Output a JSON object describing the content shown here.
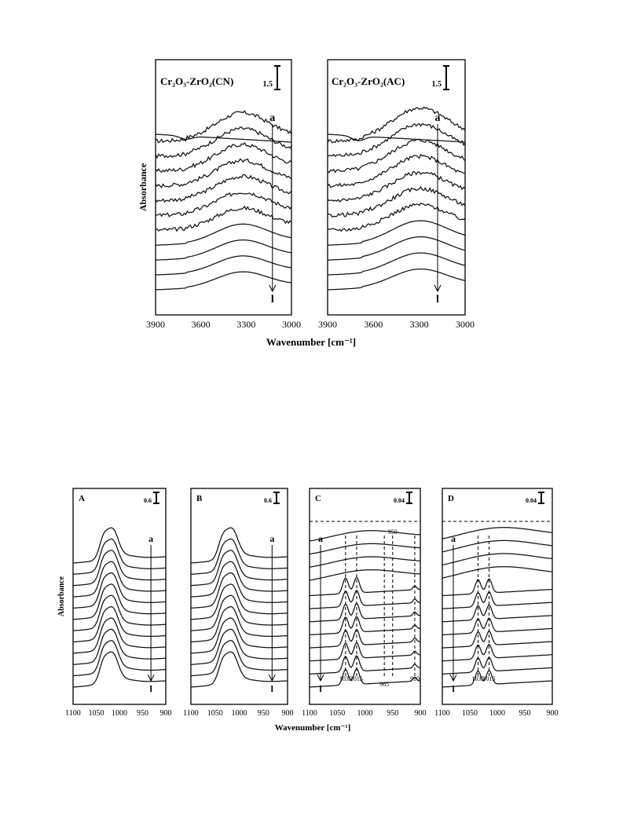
{
  "chart_data": [
    {
      "type": "line",
      "panel_title": "Cr₂O₃-ZrO₂(CN)",
      "scale_bar_label": "1.5",
      "xlim": [
        3900,
        3000
      ],
      "x_ticks": [
        "3900",
        "3600",
        "3300",
        "3000"
      ],
      "ylabel": "Absorbance",
      "arrow_start_label": "a",
      "arrow_end_label": "l",
      "series_count": 12
    },
    {
      "type": "line",
      "panel_title": "Cr₂O₃-ZrO₂(AC)",
      "scale_bar_label": "1.5",
      "xlim": [
        3900,
        3000
      ],
      "x_ticks": [
        "3900",
        "3600",
        "3300",
        "3000"
      ],
      "arrow_start_label": "a",
      "arrow_end_label": "l",
      "series_count": 12
    },
    {
      "type": "line",
      "panel_title": "A",
      "scale_bar_label": "0.6",
      "xlim": [
        1100,
        900
      ],
      "x_ticks": [
        "1100",
        "1050",
        "1000",
        "950",
        "900"
      ],
      "ylabel": "Absorbance",
      "arrow_start_label": "a",
      "arrow_end_label": "l",
      "series_count": 12
    },
    {
      "type": "line",
      "panel_title": "B",
      "scale_bar_label": "0.6",
      "xlim": [
        1100,
        900
      ],
      "x_ticks": [
        "1100",
        "1050",
        "1000",
        "950",
        "900"
      ],
      "arrow_start_label": "a",
      "arrow_end_label": "l",
      "series_count": 12
    },
    {
      "type": "line",
      "panel_title": "C",
      "scale_bar_label": "0.04",
      "xlim": [
        1100,
        900
      ],
      "x_ticks": [
        "1100",
        "1050",
        "1000",
        "950",
        "900"
      ],
      "arrow_start_label": "a",
      "arrow_end_label": "l",
      "series_count": 12,
      "annotations": [
        "1035",
        "1015",
        "965",
        "950",
        "910"
      ],
      "marked_wavenumbers": [
        1035,
        1015,
        965,
        950,
        910
      ]
    },
    {
      "type": "line",
      "panel_title": "D",
      "scale_bar_label": "0.04",
      "xlim": [
        1100,
        900
      ],
      "x_ticks": [
        "1100",
        "1050",
        "1000",
        "950",
        "900"
      ],
      "arrow_start_label": "a",
      "arrow_end_label": "l",
      "series_count": 12,
      "annotations": [
        "1035",
        "1015"
      ],
      "marked_wavenumbers": [
        1035,
        1015
      ]
    }
  ],
  "xlabel_top": "Wavenumber [cm⁻¹]",
  "xlabel_bottom": "Wavenumber [cm⁻¹]"
}
